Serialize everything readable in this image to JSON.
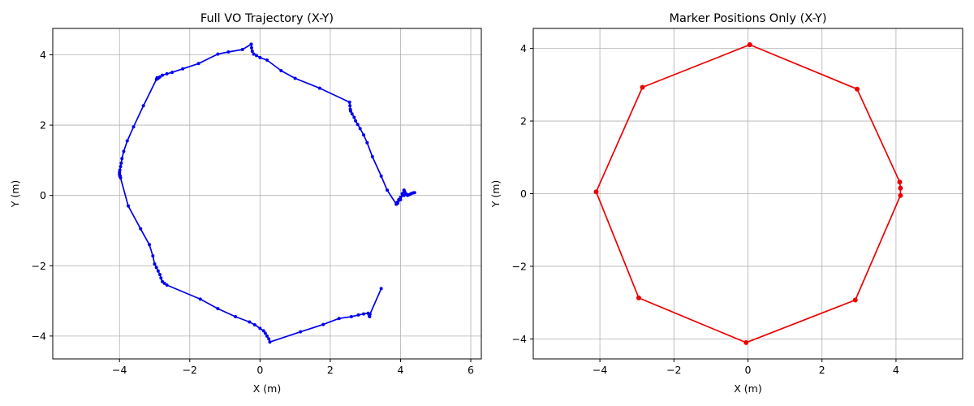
{
  "chart_data": [
    {
      "type": "line",
      "title": "Full VO Trajectory (X-Y)",
      "xlabel": "X (m)",
      "ylabel": "Y (m)",
      "xlim": [
        -5.9,
        6.3
      ],
      "ylim": [
        -4.65,
        4.75
      ],
      "xticks": [
        -4,
        -2,
        0,
        2,
        4,
        6
      ],
      "yticks": [
        -4,
        -2,
        0,
        2,
        4
      ],
      "grid": true,
      "color": "#0000ee",
      "markers": true,
      "series": [
        {
          "x": [
            -0.25,
            -0.24,
            -0.22,
            -0.18,
            -0.1,
            0.0,
            0.2,
            0.6,
            1.0,
            1.7,
            2.55,
            2.56,
            2.57,
            2.58,
            2.62,
            2.68,
            2.72,
            2.78,
            2.85,
            2.95,
            3.05,
            3.2,
            3.45,
            3.62,
            3.88,
            3.92,
            4.0,
            4.05,
            4.1,
            4.1,
            4.12,
            4.15,
            4.2,
            4.25,
            4.3,
            4.35,
            4.4,
            4.3,
            4.2,
            4.1,
            4.0,
            3.95,
            3.9,
            3.88
          ],
          "y": [
            4.3,
            4.2,
            4.1,
            4.02,
            3.98,
            3.92,
            3.85,
            3.55,
            3.33,
            3.05,
            2.65,
            2.55,
            2.45,
            2.4,
            2.32,
            2.22,
            2.12,
            2.02,
            1.9,
            1.72,
            1.5,
            1.1,
            0.55,
            0.15,
            -0.25,
            -0.22,
            -0.12,
            0.05,
            0.12,
            0.15,
            0.1,
            0.05,
            0.0,
            0.02,
            0.05,
            0.07,
            0.08,
            0.05,
            0.02,
            0.0,
            -0.05,
            -0.12,
            -0.2,
            -0.25
          ]
        },
        {
          "x": [
            -0.25,
            -0.5,
            -0.9,
            -1.2,
            -1.75,
            -2.2,
            -2.5,
            -2.65,
            -2.78,
            -2.85,
            -2.9,
            -2.92,
            -2.93,
            -2.95,
            -3.32,
            -3.6,
            -3.78,
            -3.88,
            -3.93,
            -3.95,
            -3.97,
            -3.99,
            -4.0,
            -4.0,
            -3.99,
            -3.98,
            -3.97,
            -3.75,
            -3.4,
            -3.15,
            -3.05,
            -3.0,
            -2.95,
            -2.9,
            -2.85,
            -2.82,
            -2.78,
            -2.72,
            -2.65,
            -1.7,
            -1.2,
            -0.7,
            -0.3,
            -0.15,
            0.0,
            0.1,
            0.15,
            0.2,
            0.25,
            0.28,
            1.15,
            1.8,
            2.25,
            2.6,
            2.8,
            2.95,
            3.08,
            3.1,
            3.11,
            3.12,
            3.13,
            3.45
          ],
          "y": [
            4.3,
            4.15,
            4.08,
            4.02,
            3.75,
            3.6,
            3.5,
            3.46,
            3.42,
            3.37,
            3.33,
            3.34,
            3.35,
            3.3,
            2.55,
            1.95,
            1.55,
            1.25,
            1.05,
            0.92,
            0.82,
            0.72,
            0.65,
            0.6,
            0.55,
            0.55,
            0.5,
            -0.3,
            -0.95,
            -1.4,
            -1.72,
            -1.95,
            -2.05,
            -2.15,
            -2.25,
            -2.35,
            -2.45,
            -2.5,
            -2.55,
            -2.95,
            -3.22,
            -3.45,
            -3.6,
            -3.68,
            -3.78,
            -3.85,
            -3.92,
            -4.0,
            -4.08,
            -4.17,
            -3.88,
            -3.67,
            -3.5,
            -3.45,
            -3.4,
            -3.37,
            -3.35,
            -3.38,
            -3.42,
            -3.45,
            -3.38,
            -2.65
          ]
        }
      ]
    },
    {
      "type": "line",
      "title": "Marker Positions Only (X-Y)",
      "xlabel": "X (m)",
      "ylabel": "Y (m)",
      "xlim": [
        -5.8,
        5.8
      ],
      "ylim": [
        -4.55,
        4.55
      ],
      "xticks": [
        -4,
        -2,
        0,
        2,
        4
      ],
      "yticks": [
        -4,
        -2,
        0,
        2,
        4
      ],
      "grid": true,
      "color": "#ee0000",
      "markers": true,
      "series": [
        {
          "x": [
            0.05,
            2.95,
            4.1,
            4.12,
            4.12,
            2.9,
            -0.05,
            -2.95,
            -4.1,
            -2.85,
            0.05
          ],
          "y": [
            4.1,
            2.88,
            0.32,
            0.15,
            -0.05,
            -2.93,
            -4.1,
            -2.87,
            0.05,
            2.93,
            4.1
          ]
        }
      ]
    }
  ]
}
